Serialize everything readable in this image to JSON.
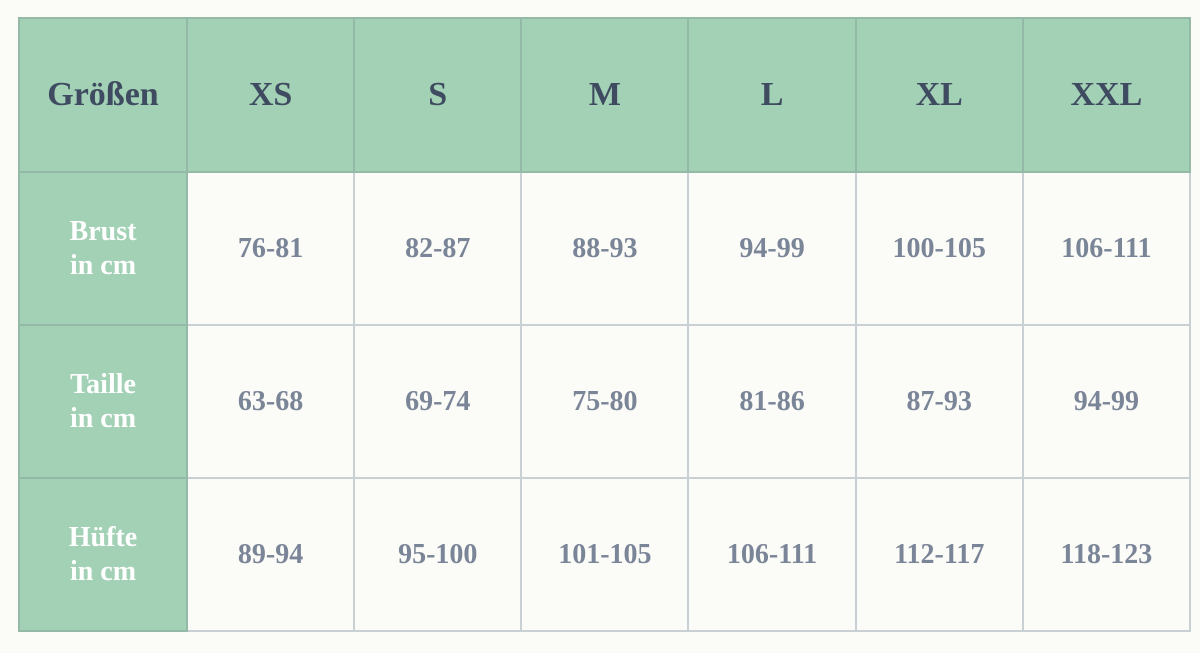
{
  "header": {
    "label": "Größen",
    "sizes": [
      "XS",
      "S",
      "M",
      "L",
      "XL",
      "XXL"
    ]
  },
  "rows": [
    {
      "label1": "Brust",
      "label2": "in cm",
      "values": [
        "76-81",
        "82-87",
        "88-93",
        "94-99",
        "100-105",
        "106-111"
      ]
    },
    {
      "label1": "Taille",
      "label2": "in cm",
      "values": [
        "63-68",
        "69-74",
        "75-80",
        "81-86",
        "87-93",
        "94-99"
      ]
    },
    {
      "label1": "Hüfte",
      "label2": "in cm",
      "values": [
        "89-94",
        "95-100",
        "101-105",
        "106-111",
        "112-117",
        "118-123"
      ]
    }
  ],
  "colors": {
    "header_bg": "#a2d1b5",
    "header_text": "#3f4b60",
    "value_text": "#7b8598",
    "background": "#fbfcf7"
  }
}
